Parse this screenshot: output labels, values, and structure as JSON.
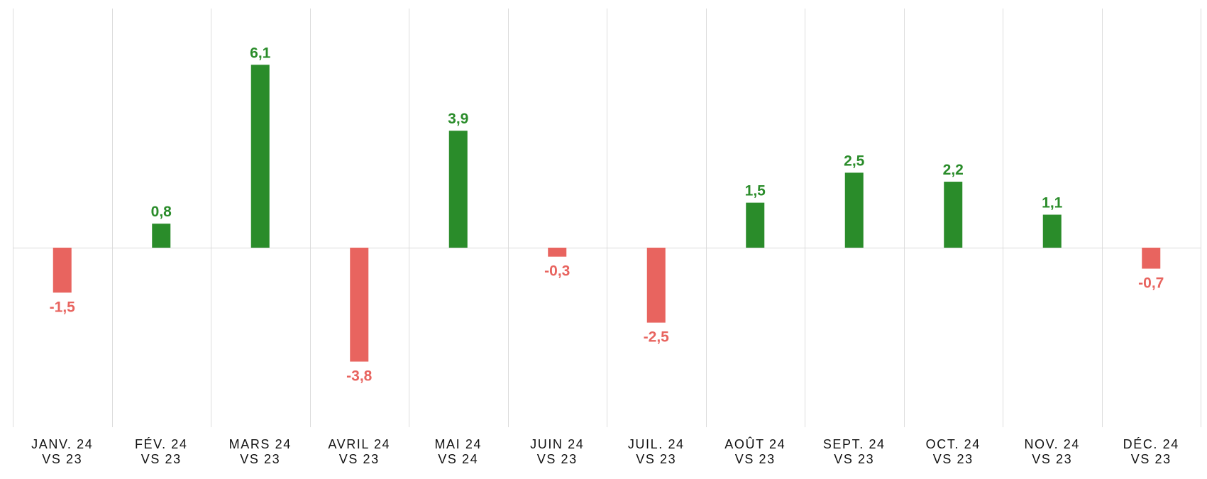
{
  "chart_data": {
    "type": "bar",
    "title": "",
    "xlabel": "",
    "ylabel": "",
    "categories": [
      [
        "JANV. 24",
        "VS 23"
      ],
      [
        "FÉV. 24",
        "VS 23"
      ],
      [
        "MARS 24",
        "VS 23"
      ],
      [
        "AVRIL 24",
        "VS 23"
      ],
      [
        "MAI 24",
        "VS 24"
      ],
      [
        "JUIN 24",
        "VS 23"
      ],
      [
        "JUIL. 24",
        "VS 23"
      ],
      [
        "AOÛT 24",
        "VS 23"
      ],
      [
        "SEPT. 24",
        "VS 23"
      ],
      [
        "OCT. 24",
        "VS 23"
      ],
      [
        "NOV. 24",
        "VS 23"
      ],
      [
        "DÉC. 24",
        "VS 23"
      ]
    ],
    "values": [
      -1.5,
      0.8,
      6.1,
      -3.8,
      3.9,
      -0.3,
      -2.5,
      1.5,
      2.5,
      2.2,
      1.1,
      -0.7
    ],
    "value_labels": [
      "-1,5",
      "0,8",
      "6,1",
      "-3,8",
      "3,9",
      "-0,3",
      "-2,5",
      "1,5",
      "2,5",
      "2,2",
      "1,1",
      "-0,7"
    ],
    "ylim": [
      -6.0,
      8.0
    ],
    "grid": "vertical-separators",
    "legend": "none",
    "colors": {
      "positive": "#2a8c2a",
      "negative": "#e8645f",
      "grid": "#dddddd",
      "zero_line": "#d9d9d9",
      "axis_text": "#111111"
    }
  }
}
